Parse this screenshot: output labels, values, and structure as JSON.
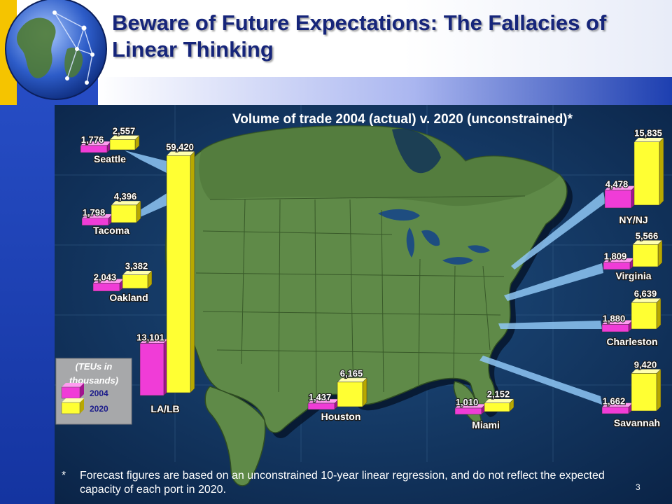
{
  "slide": {
    "title": "Beware of Future Expectations: The Fallacies of Linear Thinking",
    "footnote_marker": "*",
    "footnote": "Forecast figures are based on an unconstrained 10-year linear regression, and do not reflect the expected capacity of each port in 2020.",
    "page_number": "3",
    "colors": {
      "title": "#16257a",
      "background": "#1d3fb0",
      "accent_yellow": "#f5c400",
      "map_land": "#5f8a48",
      "map_sea": "#0e2f5a"
    }
  },
  "chart_data": {
    "type": "bar",
    "title": "Volume of trade 2004 (actual) v. 2020 (unconstrained)*",
    "legend": {
      "title": "(TEUs in thousands)",
      "placement": "bottom-left",
      "entries": [
        {
          "label": "2004",
          "color": "#f03cd7"
        },
        {
          "label": "2020",
          "color": "#ffff33"
        }
      ]
    },
    "categories": [
      "Seattle",
      "Tacoma",
      "Oakland",
      "LA/LB",
      "Houston",
      "Miami",
      "NY/NJ",
      "Virginia",
      "Charleston",
      "Savannah"
    ],
    "series": [
      {
        "name": "2004",
        "values": [
          1776,
          1798,
          2043,
          13101,
          1437,
          1010,
          4478,
          1809,
          1880,
          1662
        ],
        "labels": [
          "1,776",
          "1,798",
          "2,043",
          "13,101",
          "1,437",
          "1,010",
          "4,478",
          "1,809",
          "1,880",
          "1,662"
        ]
      },
      {
        "name": "2020",
        "values": [
          2557,
          4396,
          3382,
          59420,
          6165,
          2152,
          15835,
          5566,
          6639,
          9420
        ],
        "labels": [
          "2,557",
          "4,396",
          "3,382",
          "59,420",
          "6,165",
          "2,152",
          "15,835",
          "5,566",
          "6,639",
          "9,420"
        ]
      }
    ]
  }
}
